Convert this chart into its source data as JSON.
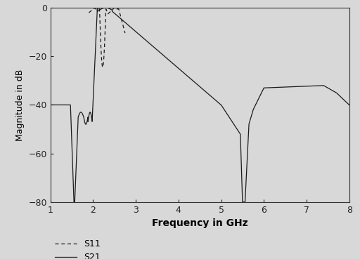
{
  "title": "",
  "xlabel": "Frequency in GHz",
  "ylabel": "Magnitude in dB",
  "xlim": [
    1,
    8
  ],
  "ylim": [
    -80,
    0
  ],
  "xticks": [
    1,
    2,
    3,
    4,
    5,
    6,
    7,
    8
  ],
  "yticks": [
    0,
    -20,
    -40,
    -60,
    -80
  ],
  "background_color": "#d8d8d8",
  "axes_color": "#d8d8d8",
  "line_color": "#1a1a1a",
  "legend_labels": [
    "S11",
    "S21"
  ],
  "legend_styles": [
    "dashed",
    "solid"
  ]
}
